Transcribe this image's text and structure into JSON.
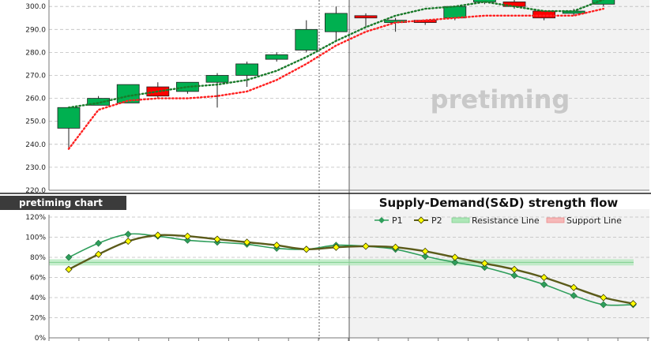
{
  "watermark": "pretiming",
  "badge_label": "pretiming chart",
  "bottom_title": "Supply-Demand(S&D) strength flow",
  "legend": {
    "p1": "P1",
    "p2": "P2",
    "resistance": "Resistance Line",
    "support": "Support Line"
  },
  "colors": {
    "up": "#00b050",
    "down": "#ff0000",
    "green_dots": "#1a7a2a",
    "red_dots": "#ff2020",
    "p1": "#2e9e5b",
    "p2": "#5b5b1a",
    "band": "#aee7b8",
    "forecast_bg": "#f2f2f2"
  },
  "chart_data": [
    {
      "type": "candlestick",
      "title": "",
      "ylim": [
        220,
        300
      ],
      "yticks": [
        "220.0",
        "230.0",
        "240.0",
        "250.0",
        "260.0",
        "270.0",
        "280.0",
        "290.0",
        "300.0"
      ],
      "candles": [
        {
          "o": 247,
          "c": 256,
          "h": 256,
          "l": 238
        },
        {
          "o": 257,
          "c": 260,
          "h": 261,
          "l": 257
        },
        {
          "o": 258,
          "c": 266,
          "h": 266,
          "l": 258
        },
        {
          "o": 265,
          "c": 261,
          "h": 267,
          "l": 260
        },
        {
          "o": 263,
          "c": 267,
          "h": 267,
          "l": 262
        },
        {
          "o": 267,
          "c": 270,
          "h": 271,
          "l": 256
        },
        {
          "o": 270,
          "c": 275,
          "h": 276,
          "l": 265
        },
        {
          "o": 277,
          "c": 279,
          "h": 280,
          "l": 276
        },
        {
          "o": 281,
          "c": 290,
          "h": 294,
          "l": 280
        },
        {
          "o": 289,
          "c": 297,
          "h": 300,
          "l": 285
        },
        {
          "o": 296,
          "c": 295,
          "h": 297,
          "l": 291
        },
        {
          "o": 293,
          "c": 294,
          "h": 295,
          "l": 289
        },
        {
          "o": 294,
          "c": 293,
          "h": 294,
          "l": 292
        },
        {
          "o": 295,
          "c": 300,
          "h": 300,
          "l": 294
        },
        {
          "o": 302,
          "c": 304,
          "h": 305,
          "l": 301
        },
        {
          "o": 302,
          "c": 300,
          "h": 303,
          "l": 299
        },
        {
          "o": 298,
          "c": 295,
          "h": 298,
          "l": 294
        },
        {
          "o": 297,
          "c": 298,
          "h": 299,
          "l": 296
        },
        {
          "o": 301,
          "c": 304,
          "h": 305,
          "l": 300
        }
      ],
      "resistance_dots": [
        256,
        258,
        261,
        263,
        265,
        266,
        268,
        272,
        278,
        285,
        291,
        296,
        299,
        300,
        302,
        300,
        298,
        298,
        303
      ],
      "support_dots": [
        238,
        255,
        259,
        260,
        260,
        261,
        263,
        268,
        275,
        283,
        289,
        293,
        294,
        295,
        296,
        296,
        296,
        296,
        299
      ]
    },
    {
      "type": "line",
      "title": "Supply-Demand(S&D) strength flow",
      "ylim": [
        0,
        120
      ],
      "yticks": [
        "0%",
        "20%",
        "40%",
        "60%",
        "80%",
        "100%",
        "120%"
      ],
      "series": [
        {
          "name": "P1",
          "values": [
            80,
            94,
            103,
            101,
            97,
            95,
            93,
            89,
            88,
            92,
            91,
            88,
            81,
            75,
            70,
            62,
            53,
            42,
            33,
            33
          ]
        },
        {
          "name": "P2",
          "values": [
            68,
            83,
            96,
            102,
            101,
            98,
            95,
            92,
            88,
            90,
            91,
            90,
            86,
            80,
            74,
            68,
            60,
            50,
            40,
            34
          ]
        }
      ],
      "resistance_line": 75
    }
  ]
}
